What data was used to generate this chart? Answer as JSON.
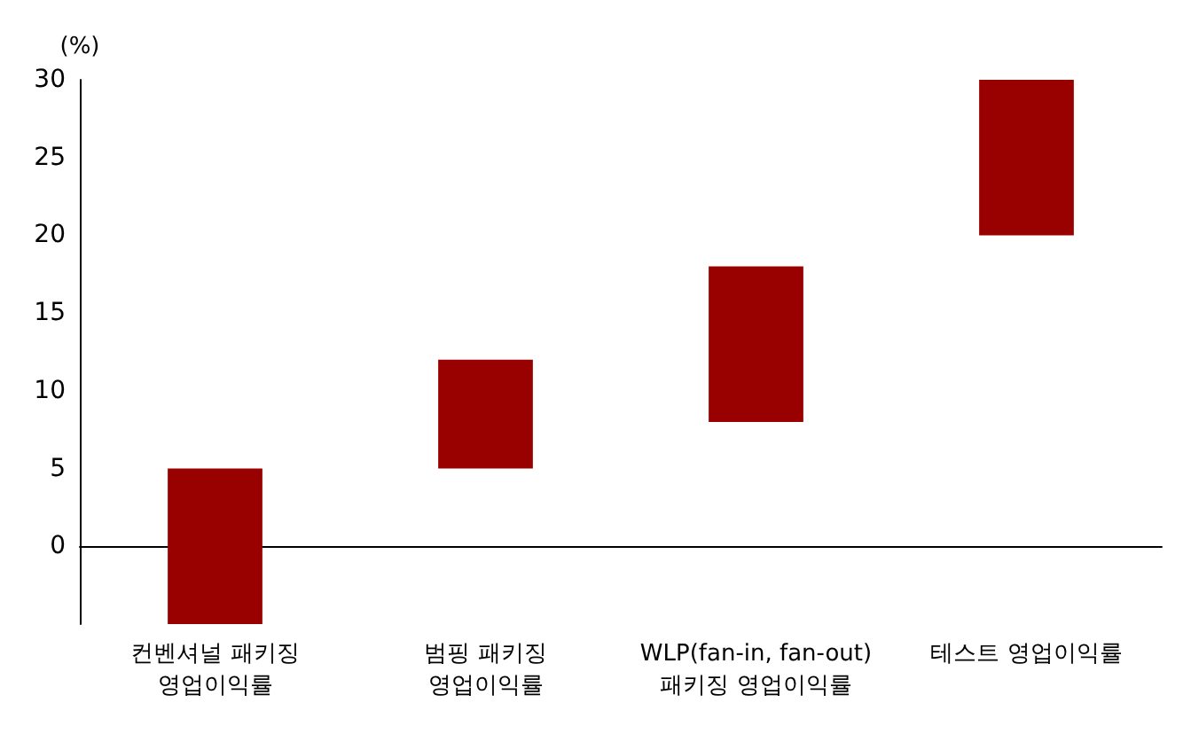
{
  "chart_data": {
    "type": "bar",
    "ylabel": "(%)",
    "categories": [
      "컨벤셔널 패키징\n영업이익률",
      "범핑 패키징\n영업이익률",
      "WLP(fan-in, fan-out)\n패키징 영업이익률",
      "테스트 영업이익률"
    ],
    "base": [
      -5,
      5,
      8,
      20
    ],
    "values": [
      10,
      7,
      10,
      10
    ],
    "color": "#990000",
    "ylim": [
      -5,
      30
    ],
    "yticks": [
      0,
      5,
      10,
      15,
      20,
      25,
      30
    ]
  }
}
